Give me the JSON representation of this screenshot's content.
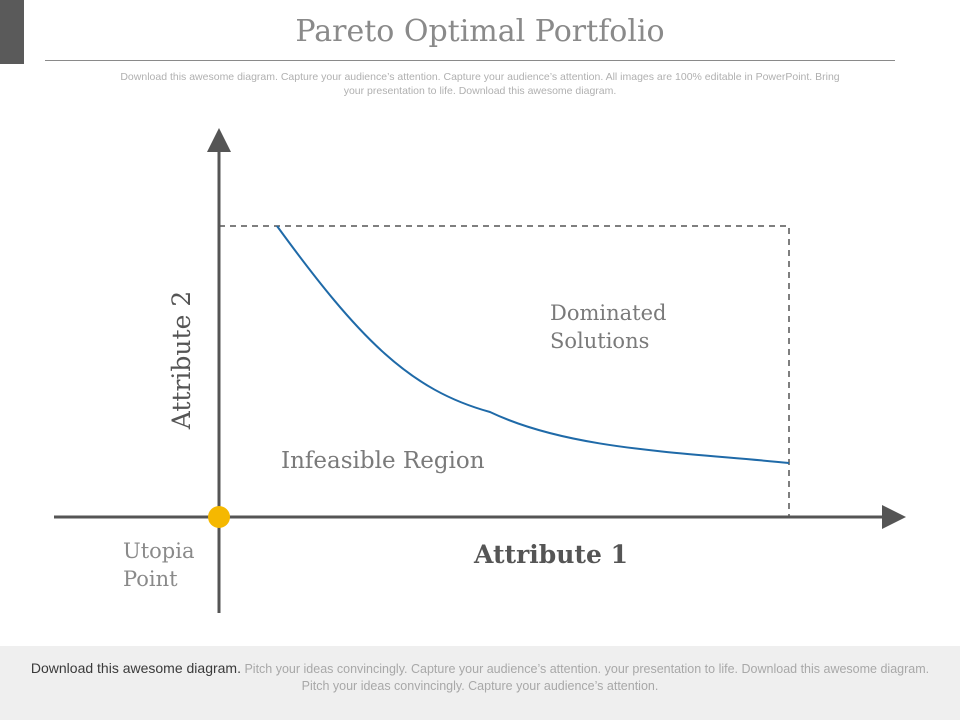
{
  "title": "Pareto Optimal Portfolio",
  "subtitle": "Download this awesome diagram. Capture your audience’s attention. Capture your audience’s attention. All images are 100% editable in PowerPoint. Bring your presentation to life. Download this awesome diagram.",
  "diagram": {
    "y_axis_label": "Attribute 2",
    "x_axis_label": "Attribute 1",
    "dominated_label_line1": "Dominated",
    "dominated_label_line2": "Solutions",
    "infeasible_label": "Infeasible Region",
    "utopia_label_line1": "Utopia",
    "utopia_label_line2": "Point",
    "curve_color": "#1f6aa8",
    "utopia_point_color": "#f5b800",
    "axis_color": "#555555"
  },
  "footer": {
    "lead": "Download this awesome diagram.",
    "text": " Pitch your ideas convincingly. Capture your audience’s attention. your presentation to life. Download this awesome diagram. Pitch your ideas convincingly. Capture your audience’s attention."
  }
}
